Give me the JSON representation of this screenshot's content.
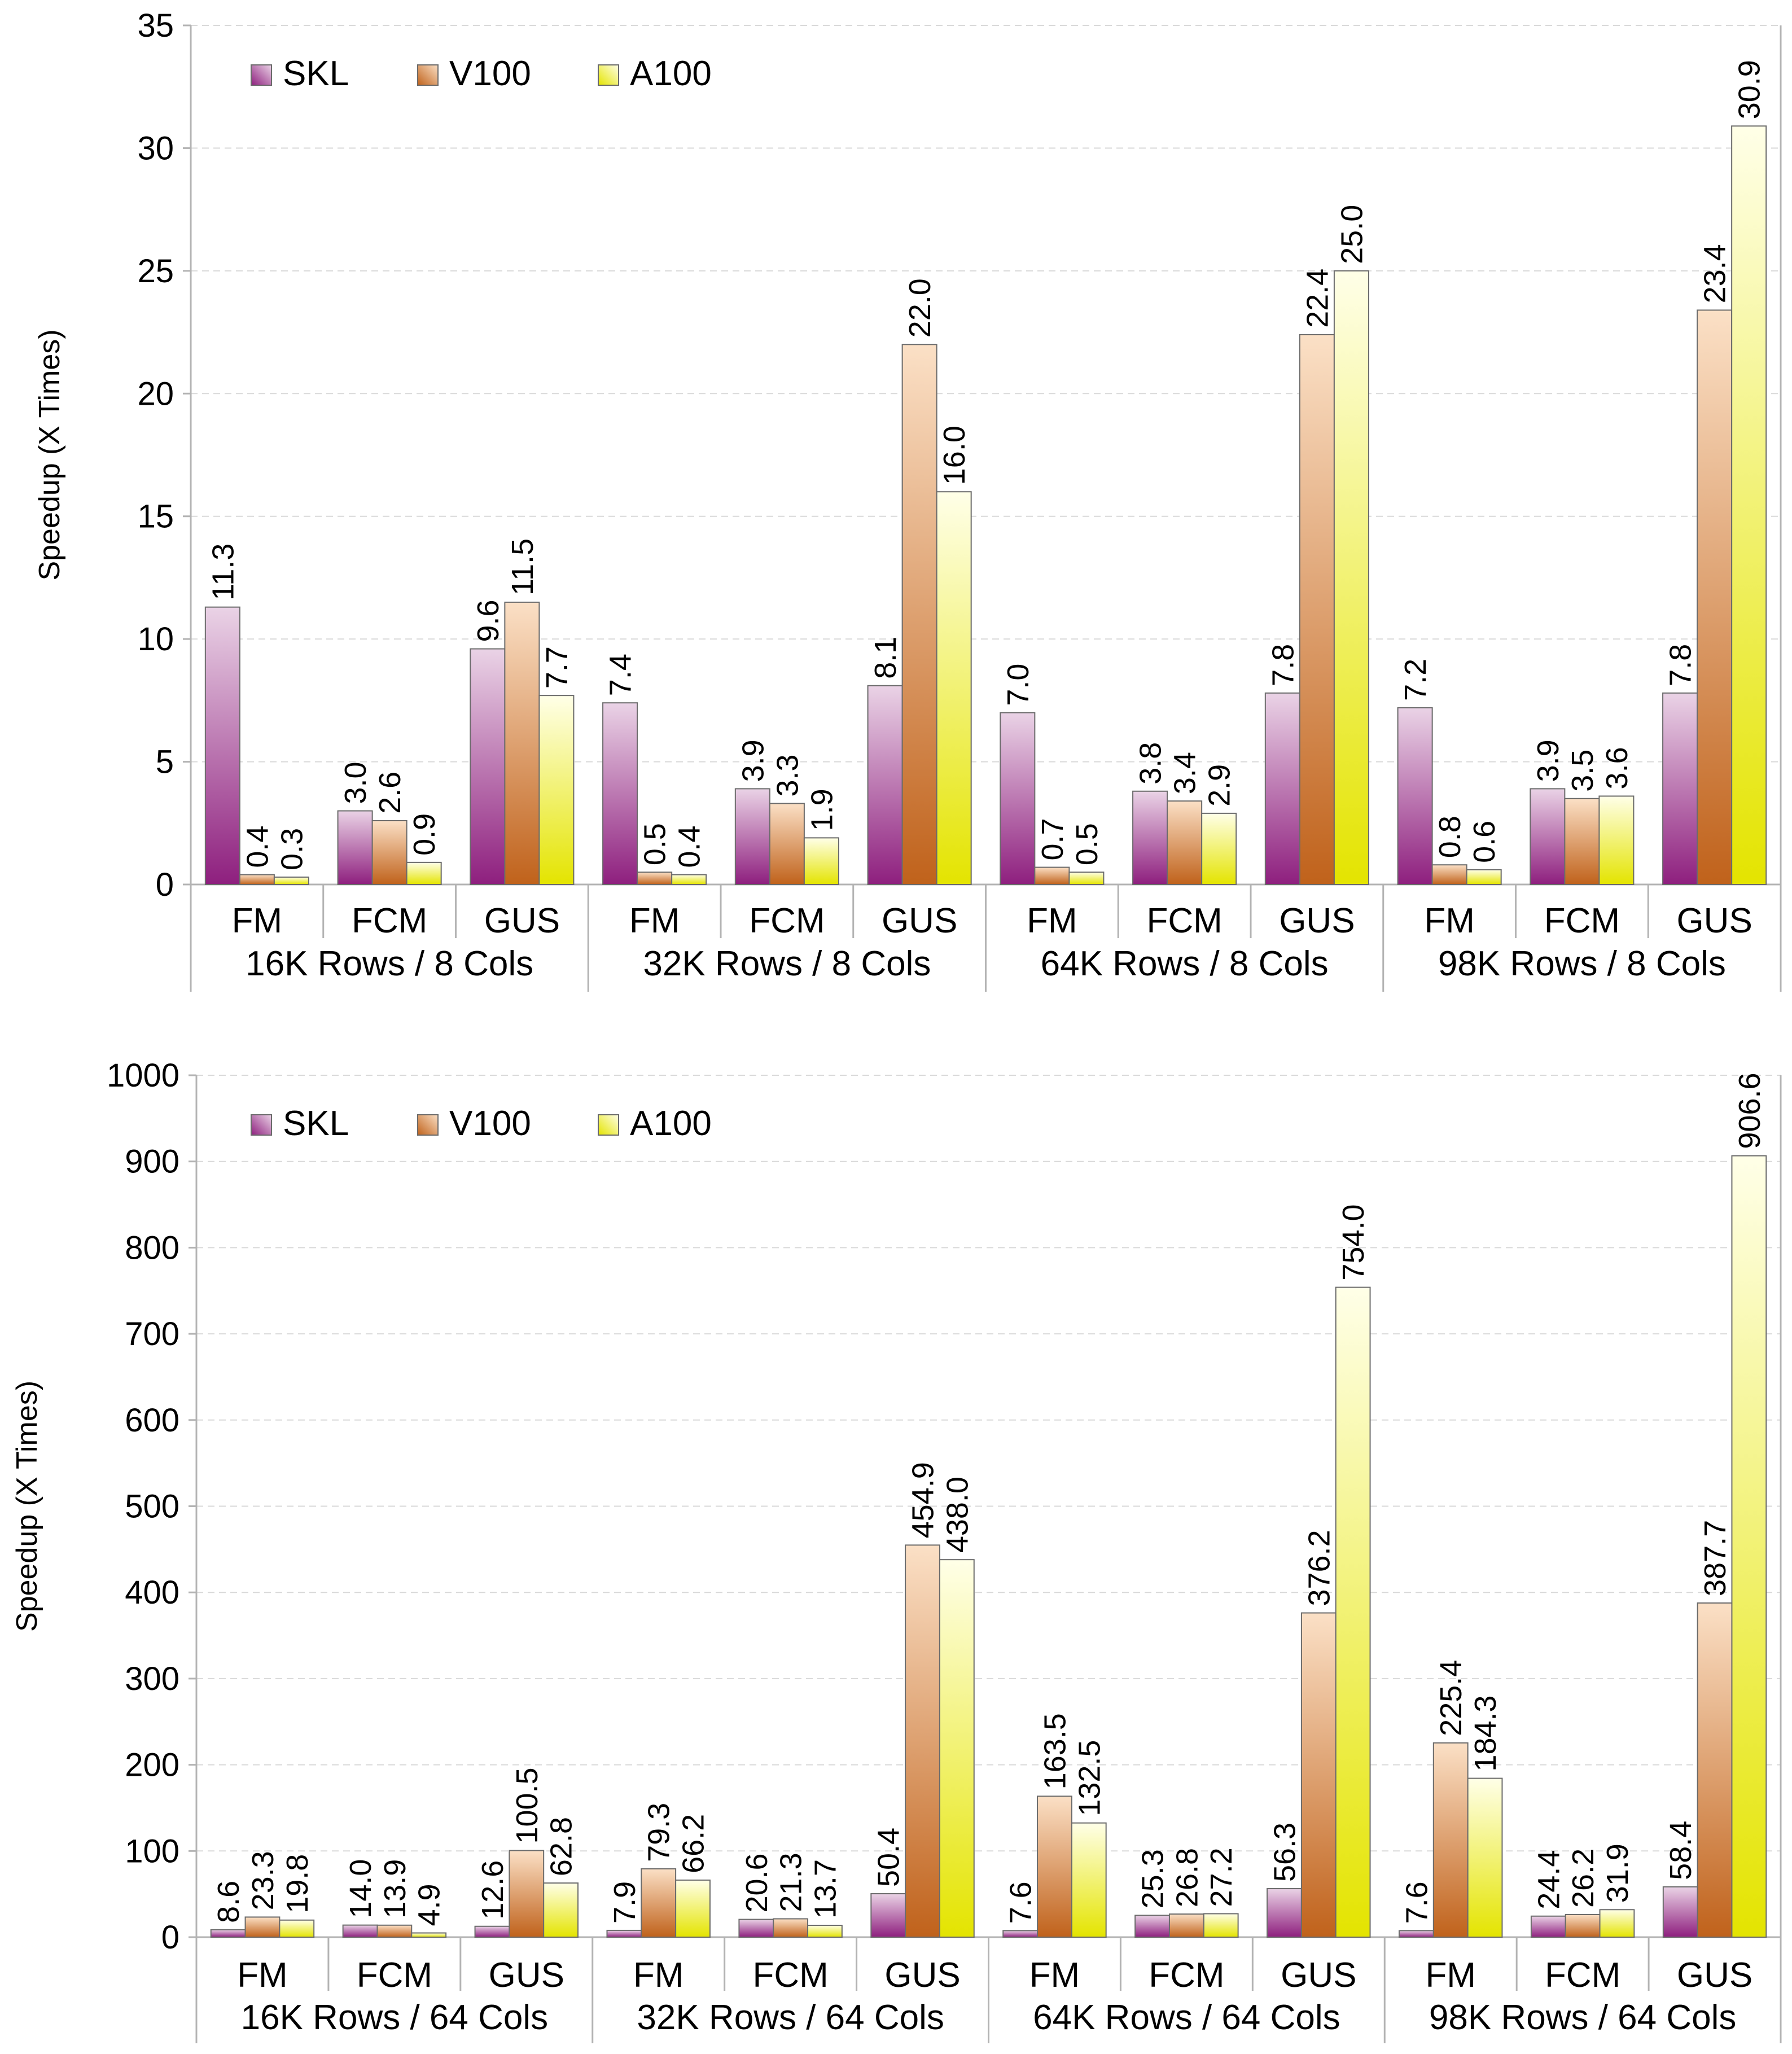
{
  "colors": {
    "SKL": "#8e1f7e",
    "V100": "#c0621b",
    "A100": "#e4e400"
  },
  "chart_data": [
    {
      "type": "bar",
      "ylabel": "Speedup (X Times)",
      "ylim": [
        0,
        35
      ],
      "yticks": [
        "0",
        "5",
        "10",
        "15",
        "20",
        "25",
        "30",
        "35"
      ],
      "legend": [
        "SKL",
        "V100",
        "A100"
      ],
      "legend_position": "top-left",
      "grid": true,
      "groups": [
        "16K Rows / 8 Cols",
        "32K Rows / 8 Cols",
        "64K Rows / 8 Cols",
        "98K Rows / 8 Cols"
      ],
      "subcategories": [
        "FM",
        "FCM",
        "GUS"
      ],
      "series": [
        {
          "name": "SKL",
          "values": [
            [
              11.3,
              3.0,
              9.6
            ],
            [
              7.4,
              3.9,
              8.1
            ],
            [
              7.0,
              3.8,
              7.8
            ],
            [
              7.2,
              3.9,
              7.8
            ]
          ],
          "labels": [
            [
              "11.3",
              "3.0",
              "9.6"
            ],
            [
              "7.4",
              "3.9",
              "8.1"
            ],
            [
              "7.0",
              "3.8",
              "7.8"
            ],
            [
              "7.2",
              "3.9",
              "7.8"
            ]
          ]
        },
        {
          "name": "V100",
          "values": [
            [
              0.4,
              2.6,
              11.5
            ],
            [
              0.5,
              3.3,
              22.0
            ],
            [
              0.7,
              3.4,
              22.4
            ],
            [
              0.8,
              3.5,
              23.4
            ]
          ],
          "labels": [
            [
              "0.4",
              "2.6",
              "11.5"
            ],
            [
              "0.5",
              "3.3",
              "22.0"
            ],
            [
              "0.7",
              "3.4",
              "22.4"
            ],
            [
              "0.8",
              "3.5",
              "23.4"
            ]
          ]
        },
        {
          "name": "A100",
          "values": [
            [
              0.3,
              0.9,
              7.7
            ],
            [
              0.4,
              1.9,
              16.0
            ],
            [
              0.5,
              2.9,
              25.0
            ],
            [
              0.6,
              3.6,
              30.9
            ]
          ],
          "labels": [
            [
              "0.3",
              "0.9",
              "7.7"
            ],
            [
              "0.4",
              "1.9",
              "16.0"
            ],
            [
              "0.5",
              "2.9",
              "25.0"
            ],
            [
              "0.6",
              "3.6",
              "30.9"
            ]
          ]
        }
      ]
    },
    {
      "type": "bar",
      "ylabel": "Speedup (X Times)",
      "ylim": [
        0,
        1000
      ],
      "yticks": [
        "0",
        "100",
        "200",
        "300",
        "400",
        "500",
        "600",
        "700",
        "800",
        "900",
        "1000"
      ],
      "legend": [
        "SKL",
        "V100",
        "A100"
      ],
      "legend_position": "top-left",
      "grid": true,
      "groups": [
        "16K Rows / 64 Cols",
        "32K Rows / 64 Cols",
        "64K Rows / 64 Cols",
        "98K Rows / 64 Cols"
      ],
      "subcategories": [
        "FM",
        "FCM",
        "GUS"
      ],
      "series": [
        {
          "name": "SKL",
          "values": [
            [
              8.6,
              14.0,
              12.6
            ],
            [
              7.9,
              20.6,
              50.4
            ],
            [
              7.6,
              25.3,
              56.3
            ],
            [
              7.6,
              24.4,
              58.4
            ]
          ],
          "labels": [
            [
              "8.6",
              "14.0",
              "12.6"
            ],
            [
              "7.9",
              "20.6",
              "50.4"
            ],
            [
              "7.6",
              "25.3",
              "56.3"
            ],
            [
              "7.6",
              "24.4",
              "58.4"
            ]
          ]
        },
        {
          "name": "V100",
          "values": [
            [
              23.3,
              13.9,
              100.5
            ],
            [
              79.3,
              21.3,
              454.9
            ],
            [
              163.5,
              26.8,
              376.2
            ],
            [
              225.4,
              26.2,
              387.7
            ]
          ],
          "labels": [
            [
              "23.3",
              "13.9",
              "100.5"
            ],
            [
              "79.3",
              "21.3",
              "454.9"
            ],
            [
              "163.5",
              "26.8",
              "376.2"
            ],
            [
              "225.4",
              "26.2",
              "387.7"
            ]
          ]
        },
        {
          "name": "A100",
          "values": [
            [
              19.8,
              4.9,
              62.8
            ],
            [
              66.2,
              13.7,
              438.0
            ],
            [
              132.5,
              27.2,
              754.0
            ],
            [
              184.3,
              31.9,
              906.6
            ]
          ],
          "labels": [
            [
              "19.8",
              "4.9",
              "62.8"
            ],
            [
              "66.2",
              "13.7",
              "438.0"
            ],
            [
              "132.5",
              "27.2",
              "754.0"
            ],
            [
              "184.3",
              "31.9",
              "906.6"
            ]
          ]
        }
      ]
    }
  ]
}
